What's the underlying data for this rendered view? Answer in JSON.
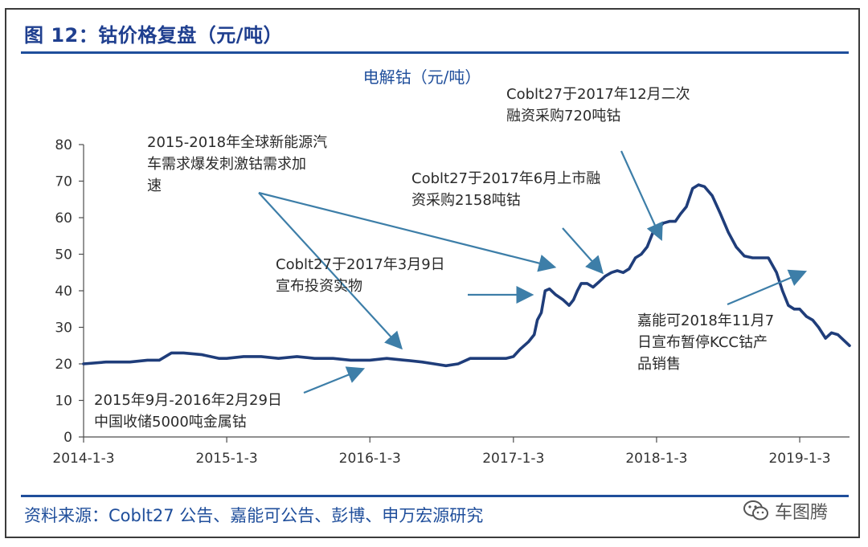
{
  "figure_title": "图 12：钴价格复盘（元/吨）",
  "source_text": "资料来源：Coblt27 公告、嘉能可公告、彭博、申万宏源研究",
  "watermark_text": "车图腾",
  "watermark_icon": "wechat-icon",
  "colors": {
    "line": "#1f3d7a",
    "accent": "#1f4e9b",
    "arrow": "#3d7ea8",
    "axis": "#4d4d4d"
  },
  "annotations": [
    {
      "id": "ann-2015-2018",
      "text": "2015-2018年全球新能源汽\n车需求爆发刺激钴需求加\n速"
    },
    {
      "id": "ann-dec-2017",
      "text": "Coblt27于2017年12月二次\n融资采购720吨钴"
    },
    {
      "id": "ann-jun-2017",
      "text": "Coblt27于2017年6月上市融\n资采购2158吨钴"
    },
    {
      "id": "ann-mar-2017",
      "text": "Coblt27于2017年3月9日\n宣布投资实物"
    },
    {
      "id": "ann-glencore",
      "text": "嘉能可2018年11月7\n日宣布暂停KCC钴产\n品销售"
    },
    {
      "id": "ann-storage",
      "text": "2015年9月-2016年2月29日\n中国收储5000吨金属钴"
    }
  ],
  "chart_data": {
    "type": "line",
    "title": "电解钴（元/吨）",
    "xlabel": "",
    "ylabel": "",
    "ylim": [
      0,
      80
    ],
    "yticks": [
      "0",
      "10",
      "20",
      "30",
      "40",
      "50",
      "60",
      "70",
      "80"
    ],
    "xlim": [
      "2014-01-03",
      "2019-05-10"
    ],
    "xticks": [
      "2014-1-3",
      "2015-1-3",
      "2016-1-3",
      "2017-1-3",
      "2018-1-3",
      "2019-1-3"
    ],
    "grid": false,
    "legend": "none",
    "series": [
      {
        "x": [
          "2014-01-03",
          "2014-03-01",
          "2014-05-01",
          "2014-06-15",
          "2014-07-15",
          "2014-08-15",
          "2014-09-15",
          "2014-11-01",
          "2014-12-15",
          "2015-01-03",
          "2015-02-15",
          "2015-04-01",
          "2015-05-15",
          "2015-07-01",
          "2015-08-15",
          "2015-10-01",
          "2015-11-15",
          "2016-01-03",
          "2016-02-15",
          "2016-04-01",
          "2016-05-15",
          "2016-06-15",
          "2016-07-15",
          "2016-08-15",
          "2016-09-15",
          "2016-11-01",
          "2016-12-15",
          "2017-01-03",
          "2017-01-20",
          "2017-02-10",
          "2017-02-25",
          "2017-03-05",
          "2017-03-15",
          "2017-03-25",
          "2017-04-05",
          "2017-04-20",
          "2017-05-10",
          "2017-05-25",
          "2017-06-05",
          "2017-06-15",
          "2017-06-25",
          "2017-07-10",
          "2017-07-25",
          "2017-08-10",
          "2017-08-25",
          "2017-09-10",
          "2017-09-25",
          "2017-10-10",
          "2017-10-25",
          "2017-11-10",
          "2017-11-25",
          "2017-12-10",
          "2017-12-25",
          "2018-01-03",
          "2018-01-20",
          "2018-02-05",
          "2018-02-20",
          "2018-03-05",
          "2018-03-20",
          "2018-04-05",
          "2018-04-20",
          "2018-05-05",
          "2018-05-25",
          "2018-06-15",
          "2018-07-05",
          "2018-07-25",
          "2018-08-15",
          "2018-09-05",
          "2018-09-25",
          "2018-10-15",
          "2018-11-05",
          "2018-11-20",
          "2018-12-05",
          "2018-12-20",
          "2019-01-03",
          "2019-01-20",
          "2019-02-05",
          "2019-02-20",
          "2019-03-10",
          "2019-03-25",
          "2019-04-10",
          "2019-04-25",
          "2019-05-10"
        ],
        "values": [
          20,
          20.5,
          20.5,
          21,
          21,
          23,
          23,
          22.5,
          21.5,
          21.5,
          22,
          22,
          21.5,
          22,
          21.5,
          21.5,
          21,
          21,
          21.5,
          21,
          20.5,
          20,
          19.5,
          20,
          21.5,
          21.5,
          21.5,
          22,
          24,
          26,
          28,
          32,
          34,
          40,
          40.5,
          39,
          37.5,
          36,
          37.5,
          40,
          42,
          42,
          41,
          42.5,
          44,
          45,
          45.5,
          45,
          46,
          49,
          50,
          52,
          56,
          56.5,
          58.5,
          59,
          59,
          61,
          63,
          68,
          69,
          68.5,
          66,
          61,
          56,
          52,
          49.5,
          49,
          49,
          49,
          45,
          40,
          36,
          35,
          35,
          33,
          32,
          30,
          27,
          28.5,
          28,
          26.5,
          25
        ]
      }
    ]
  }
}
